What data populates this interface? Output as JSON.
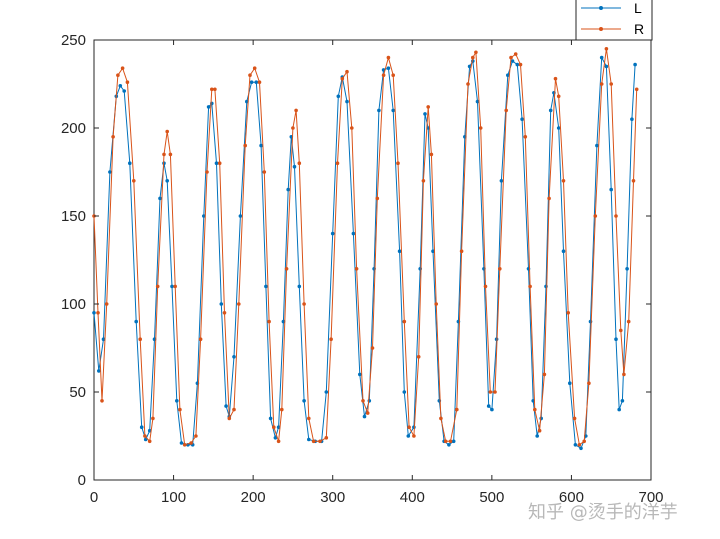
{
  "chart_data": {
    "type": "line",
    "title": "",
    "xlabel": "",
    "ylabel": "",
    "xlim": [
      0,
      700
    ],
    "ylim": [
      0,
      250
    ],
    "x_ticks": [
      0,
      100,
      200,
      300,
      400,
      500,
      600,
      700
    ],
    "y_ticks": [
      0,
      50,
      100,
      150,
      200,
      250
    ],
    "grid": false,
    "legend_position": "top-right",
    "series": [
      {
        "name": "L",
        "color": "#0072BD",
        "points": [
          [
            0,
            95
          ],
          [
            6,
            62
          ],
          [
            12,
            80
          ],
          [
            20,
            175
          ],
          [
            28,
            218
          ],
          [
            33,
            224
          ],
          [
            38,
            221
          ],
          [
            45,
            180
          ],
          [
            53,
            90
          ],
          [
            60,
            30
          ],
          [
            65,
            23
          ],
          [
            70,
            28
          ],
          [
            76,
            80
          ],
          [
            83,
            160
          ],
          [
            88,
            180
          ],
          [
            92,
            170
          ],
          [
            98,
            110
          ],
          [
            104,
            45
          ],
          [
            110,
            21
          ],
          [
            118,
            20
          ],
          [
            124,
            20
          ],
          [
            130,
            55
          ],
          [
            138,
            150
          ],
          [
            144,
            212
          ],
          [
            148,
            214
          ],
          [
            154,
            180
          ],
          [
            160,
            100
          ],
          [
            166,
            42
          ],
          [
            170,
            36
          ],
          [
            176,
            70
          ],
          [
            184,
            150
          ],
          [
            192,
            215
          ],
          [
            198,
            226
          ],
          [
            204,
            226
          ],
          [
            210,
            190
          ],
          [
            216,
            110
          ],
          [
            222,
            35
          ],
          [
            228,
            24
          ],
          [
            232,
            30
          ],
          [
            238,
            90
          ],
          [
            244,
            165
          ],
          [
            248,
            195
          ],
          [
            252,
            178
          ],
          [
            258,
            110
          ],
          [
            264,
            45
          ],
          [
            270,
            23
          ],
          [
            278,
            22
          ],
          [
            286,
            22
          ],
          [
            292,
            50
          ],
          [
            300,
            140
          ],
          [
            307,
            218
          ],
          [
            312,
            229
          ],
          [
            318,
            215
          ],
          [
            326,
            140
          ],
          [
            334,
            60
          ],
          [
            340,
            36
          ],
          [
            346,
            45
          ],
          [
            352,
            120
          ],
          [
            358,
            210
          ],
          [
            364,
            233
          ],
          [
            370,
            234
          ],
          [
            376,
            210
          ],
          [
            384,
            130
          ],
          [
            390,
            50
          ],
          [
            395,
            25
          ],
          [
            402,
            30
          ],
          [
            410,
            120
          ],
          [
            416,
            208
          ],
          [
            420,
            200
          ],
          [
            426,
            130
          ],
          [
            434,
            45
          ],
          [
            440,
            22
          ],
          [
            446,
            20
          ],
          [
            452,
            22
          ],
          [
            458,
            90
          ],
          [
            466,
            195
          ],
          [
            472,
            235
          ],
          [
            476,
            238
          ],
          [
            482,
            215
          ],
          [
            490,
            120
          ],
          [
            496,
            42
          ],
          [
            500,
            40
          ],
          [
            506,
            80
          ],
          [
            512,
            170
          ],
          [
            520,
            230
          ],
          [
            526,
            238
          ],
          [
            532,
            236
          ],
          [
            538,
            205
          ],
          [
            546,
            120
          ],
          [
            552,
            45
          ],
          [
            557,
            25
          ],
          [
            562,
            35
          ],
          [
            568,
            110
          ],
          [
            574,
            210
          ],
          [
            578,
            220
          ],
          [
            584,
            200
          ],
          [
            590,
            130
          ],
          [
            598,
            55
          ],
          [
            605,
            20
          ],
          [
            612,
            18
          ],
          [
            618,
            25
          ],
          [
            624,
            90
          ],
          [
            632,
            190
          ],
          [
            638,
            240
          ],
          [
            644,
            235
          ],
          [
            650,
            165
          ],
          [
            656,
            80
          ],
          [
            660,
            40
          ],
          [
            664,
            45
          ],
          [
            670,
            120
          ],
          [
            676,
            205
          ],
          [
            680,
            236
          ]
        ]
      },
      {
        "name": "R",
        "color": "#D95319",
        "points": [
          [
            0,
            150
          ],
          [
            5,
            95
          ],
          [
            10,
            45
          ],
          [
            16,
            100
          ],
          [
            24,
            195
          ],
          [
            30,
            230
          ],
          [
            36,
            234
          ],
          [
            42,
            226
          ],
          [
            50,
            170
          ],
          [
            58,
            80
          ],
          [
            64,
            25
          ],
          [
            70,
            22
          ],
          [
            74,
            35
          ],
          [
            80,
            110
          ],
          [
            88,
            185
          ],
          [
            92,
            198
          ],
          [
            96,
            185
          ],
          [
            102,
            110
          ],
          [
            108,
            40
          ],
          [
            114,
            20
          ],
          [
            122,
            21
          ],
          [
            128,
            25
          ],
          [
            134,
            80
          ],
          [
            142,
            175
          ],
          [
            148,
            222
          ],
          [
            152,
            222
          ],
          [
            158,
            180
          ],
          [
            164,
            95
          ],
          [
            170,
            35
          ],
          [
            176,
            40
          ],
          [
            182,
            100
          ],
          [
            190,
            190
          ],
          [
            196,
            230
          ],
          [
            202,
            234
          ],
          [
            208,
            226
          ],
          [
            214,
            175
          ],
          [
            220,
            90
          ],
          [
            226,
            30
          ],
          [
            232,
            22
          ],
          [
            236,
            40
          ],
          [
            242,
            120
          ],
          [
            250,
            200
          ],
          [
            254,
            210
          ],
          [
            258,
            180
          ],
          [
            264,
            100
          ],
          [
            270,
            35
          ],
          [
            276,
            22
          ],
          [
            284,
            22
          ],
          [
            292,
            24
          ],
          [
            298,
            80
          ],
          [
            306,
            180
          ],
          [
            312,
            228
          ],
          [
            318,
            232
          ],
          [
            324,
            200
          ],
          [
            330,
            120
          ],
          [
            338,
            45
          ],
          [
            344,
            38
          ],
          [
            350,
            75
          ],
          [
            356,
            160
          ],
          [
            364,
            230
          ],
          [
            370,
            240
          ],
          [
            376,
            230
          ],
          [
            382,
            180
          ],
          [
            390,
            90
          ],
          [
            396,
            30
          ],
          [
            402,
            25
          ],
          [
            408,
            70
          ],
          [
            414,
            170
          ],
          [
            420,
            212
          ],
          [
            424,
            185
          ],
          [
            430,
            100
          ],
          [
            436,
            35
          ],
          [
            442,
            22
          ],
          [
            448,
            22
          ],
          [
            456,
            40
          ],
          [
            462,
            130
          ],
          [
            470,
            225
          ],
          [
            476,
            240
          ],
          [
            480,
            243
          ],
          [
            486,
            200
          ],
          [
            492,
            110
          ],
          [
            498,
            50
          ],
          [
            504,
            50
          ],
          [
            510,
            120
          ],
          [
            518,
            210
          ],
          [
            524,
            240
          ],
          [
            530,
            242
          ],
          [
            536,
            236
          ],
          [
            542,
            195
          ],
          [
            548,
            110
          ],
          [
            554,
            40
          ],
          [
            560,
            28
          ],
          [
            566,
            60
          ],
          [
            572,
            160
          ],
          [
            580,
            228
          ],
          [
            584,
            218
          ],
          [
            590,
            170
          ],
          [
            596,
            95
          ],
          [
            604,
            35
          ],
          [
            610,
            20
          ],
          [
            616,
            22
          ],
          [
            622,
            55
          ],
          [
            630,
            150
          ],
          [
            638,
            225
          ],
          [
            644,
            245
          ],
          [
            650,
            225
          ],
          [
            656,
            150
          ],
          [
            662,
            85
          ],
          [
            666,
            60
          ],
          [
            672,
            90
          ],
          [
            678,
            170
          ],
          [
            682,
            222
          ]
        ]
      }
    ]
  },
  "watermark": {
    "text": "知乎 @烫手的洋芋"
  }
}
